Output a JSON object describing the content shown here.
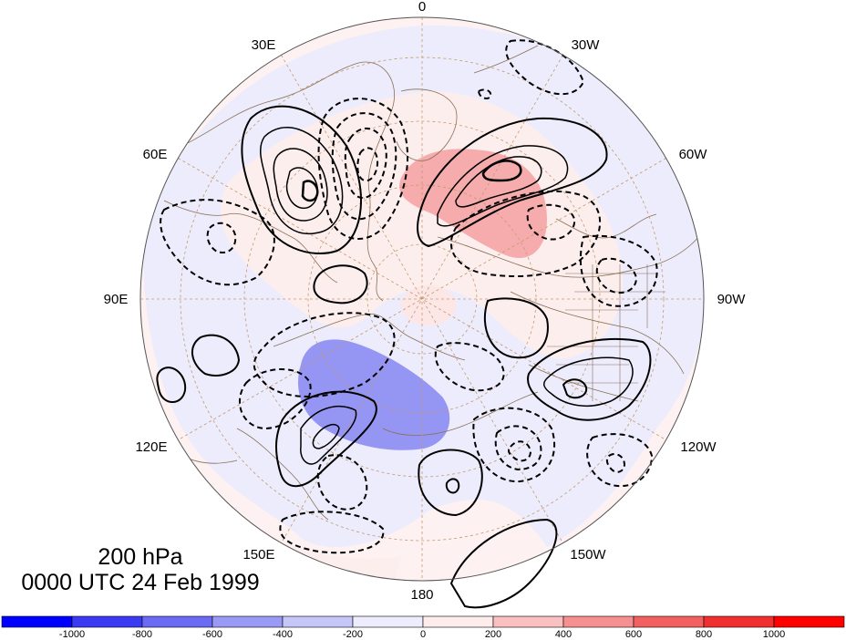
{
  "map": {
    "projection": "north-polar-stereographic",
    "longitude_labels": [
      {
        "id": "0",
        "text": "0"
      },
      {
        "id": "30w",
        "text": "30W"
      },
      {
        "id": "60w",
        "text": "60W"
      },
      {
        "id": "90w",
        "text": "90W"
      },
      {
        "id": "120w",
        "text": "120W"
      },
      {
        "id": "150w",
        "text": "150W"
      },
      {
        "id": "180",
        "text": "180"
      },
      {
        "id": "150e",
        "text": "150E"
      },
      {
        "id": "120e",
        "text": "120E"
      },
      {
        "id": "90e",
        "text": "90E"
      },
      {
        "id": "60e",
        "text": "60E"
      },
      {
        "id": "30e",
        "text": "30E"
      }
    ],
    "colors": {
      "grid": "#c49a6c",
      "coast": "#8a6f55",
      "positive_light": "#fdeeee",
      "negative_light": "#eeeefd",
      "positive_core": "#f5a0a0",
      "negative_core": "#8080f0",
      "contour": "#000000"
    }
  },
  "annotation": {
    "level": "200 hPa",
    "time": "0000 UTC 24 Feb 1999"
  },
  "colorbar": {
    "tick_labels": [
      "-1000",
      "-800",
      "-600",
      "-400",
      "-200",
      "0",
      "200",
      "400",
      "600",
      "800",
      "1000"
    ],
    "colors": [
      "#0000ff",
      "#3a3af0",
      "#6a6af2",
      "#9a9af5",
      "#c6c6f8",
      "#ececfc",
      "#fdecec",
      "#f8c0c0",
      "#f59090",
      "#f26060",
      "#f03030",
      "#ff0000"
    ]
  }
}
